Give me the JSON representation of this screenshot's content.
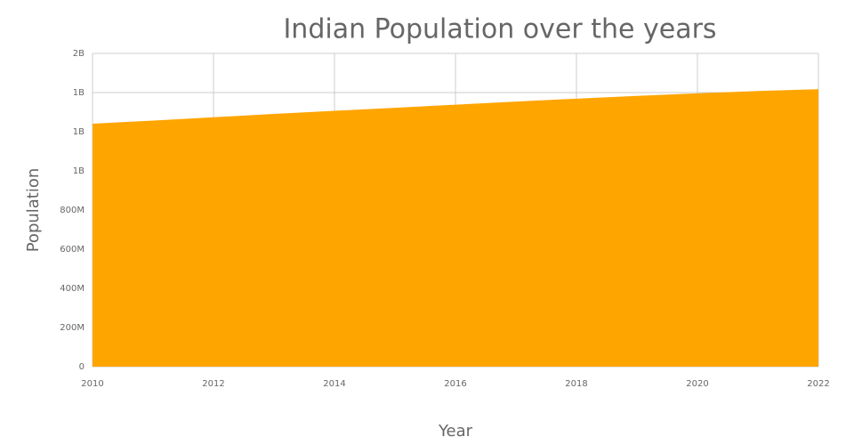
{
  "chart_data": {
    "type": "area",
    "title": "Indian Population over the years",
    "x_label": "Year",
    "y_label": "Population",
    "x": [
      2010,
      2011,
      2012,
      2013,
      2014,
      2015,
      2016,
      2017,
      2018,
      2019,
      2020,
      2021,
      2022
    ],
    "values": [
      1241000000,
      1257000000,
      1274000000,
      1291000000,
      1307000000,
      1322000000,
      1338000000,
      1354000000,
      1369000000,
      1383000000,
      1396000000,
      1408000000,
      1417000000
    ],
    "color": "#ffa500",
    "xlim": [
      2010,
      2022
    ],
    "xticks": [
      2010,
      2012,
      2014,
      2016,
      2018,
      2020,
      2022
    ],
    "ylim": [
      0,
      1600000000
    ],
    "yticks": [
      0,
      {
        "value": 200000000,
        "label": "200M"
      },
      {
        "value": 400000000,
        "label": "400M"
      },
      {
        "value": 600000000,
        "label": "600M"
      },
      {
        "value": 800000000,
        "label": "800M"
      },
      {
        "value": 1000000000,
        "label": "1B"
      },
      {
        "value": 1200000000,
        "label": "1B"
      },
      {
        "value": 1400000000,
        "label": "1B"
      },
      {
        "value": 1600000000,
        "label": "2B"
      }
    ],
    "grid": true
  }
}
